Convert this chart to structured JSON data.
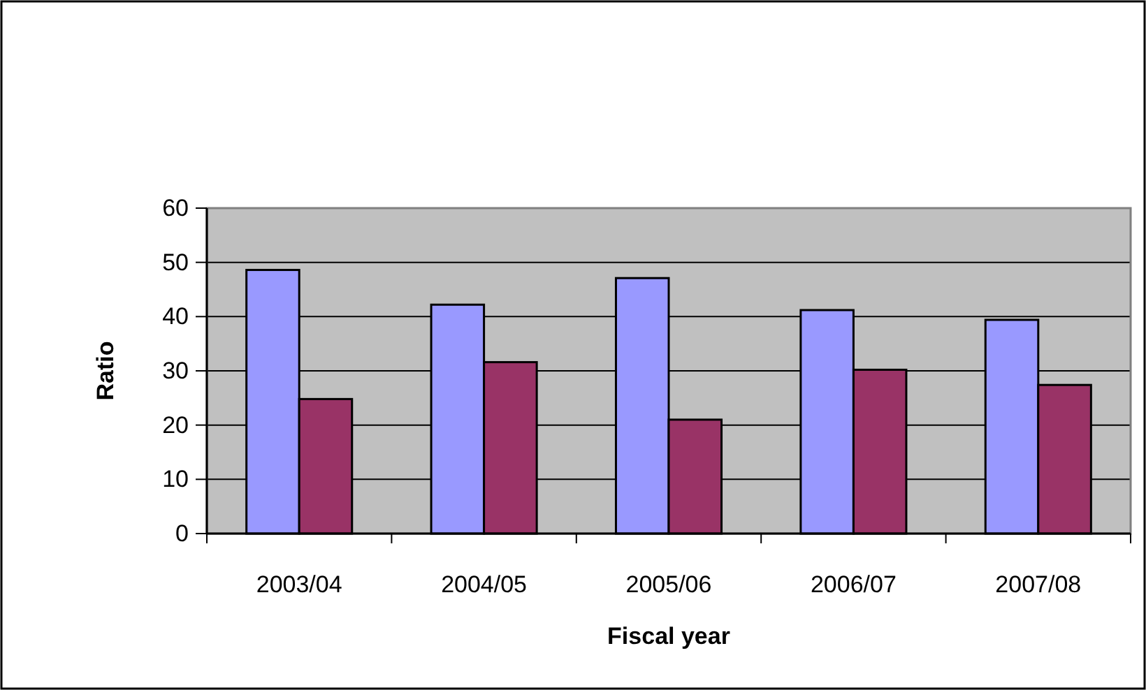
{
  "chart_data": {
    "type": "bar",
    "xlabel": "Fiscal year",
    "ylabel": "Ratio",
    "categories": [
      "2003/04",
      "2004/05",
      "2005/06",
      "2006/07",
      "2007/08"
    ],
    "series": [
      {
        "color": "#9999ff",
        "values": [
          48.6,
          42.2,
          47.1,
          41.2,
          39.4
        ]
      },
      {
        "color": "#993366",
        "values": [
          24.8,
          31.6,
          21.0,
          30.2,
          27.4
        ]
      }
    ],
    "ylim": [
      0,
      60
    ],
    "yticks": [
      0,
      10,
      20,
      30,
      40,
      50,
      60
    ],
    "grid": "y",
    "legend": false
  }
}
